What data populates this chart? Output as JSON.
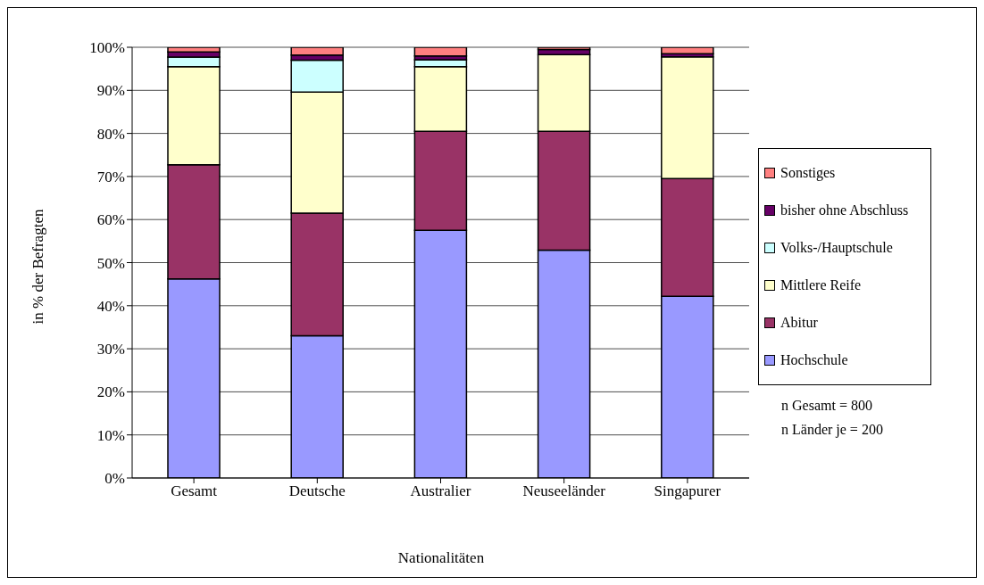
{
  "chart_data": {
    "type": "bar",
    "stacked": true,
    "xlabel": "Nationalitäten",
    "ylabel": "in % der Befragten",
    "categories": [
      "Gesamt",
      "Deutsche",
      "Australier",
      "Neuseeländer",
      "Singapurer"
    ],
    "series": [
      {
        "name": "Hochschule",
        "color": "#9999ff",
        "values": [
          46.2,
          33.0,
          57.5,
          52.9,
          42.2
        ]
      },
      {
        "name": "Abitur",
        "color": "#993366",
        "values": [
          26.5,
          28.5,
          23.0,
          27.6,
          27.3
        ]
      },
      {
        "name": "Mittlere Reife",
        "color": "#ffffcc",
        "values": [
          22.8,
          28.1,
          15.0,
          17.8,
          28.3
        ]
      },
      {
        "name": "Volks-/Hauptschule",
        "color": "#ccffff",
        "values": [
          2.2,
          7.4,
          1.6,
          0,
          0
        ]
      },
      {
        "name": "bisher ohne Abschluss",
        "color": "#660066",
        "values": [
          1.2,
          1.2,
          0.9,
          1.2,
          0.7
        ]
      },
      {
        "name": "Sonstiges",
        "color": "#ff8080",
        "values": [
          1.1,
          1.8,
          2.0,
          0.5,
          1.5
        ]
      }
    ],
    "ylim": [
      0,
      100
    ],
    "yticks": [
      {
        "value": 0,
        "label": "0%"
      },
      {
        "value": 10,
        "label": "10%"
      },
      {
        "value": 20,
        "label": "20%"
      },
      {
        "value": 30,
        "label": "30%"
      },
      {
        "value": 40,
        "label": "40%"
      },
      {
        "value": 50,
        "label": "50%"
      },
      {
        "value": 60,
        "label": "60%"
      },
      {
        "value": 70,
        "label": "70%"
      },
      {
        "value": 80,
        "label": "80%"
      },
      {
        "value": 90,
        "label": "90%"
      },
      {
        "value": 100,
        "label": "100%"
      }
    ],
    "grid": "y",
    "legend": "right",
    "annotations": [
      "n Gesamt = 800",
      "n Länder je = 200"
    ]
  }
}
